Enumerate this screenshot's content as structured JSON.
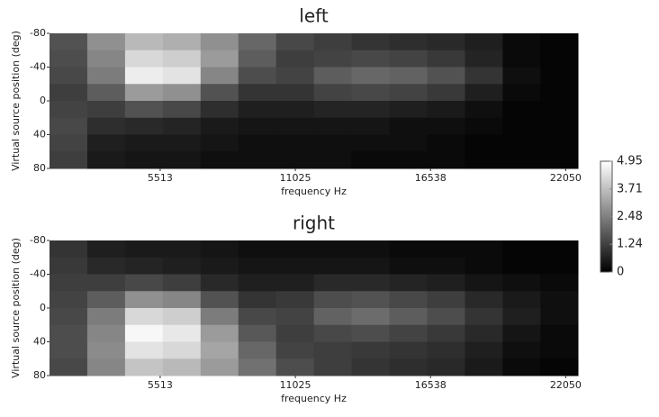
{
  "chart_data": [
    {
      "type": "heatmap",
      "title": "left",
      "x_label": "frequency Hz",
      "y_label": "Virtual source position (deg)",
      "x": [
        1770,
        3310,
        4850,
        6390,
        7930,
        9470,
        11010,
        12550,
        14090,
        15630,
        17170,
        18710,
        20250,
        21790
      ],
      "y": [
        -70,
        -50,
        -30,
        -10,
        10,
        30,
        50,
        70
      ],
      "z": [
        [
          1.6,
          2.8,
          3.6,
          3.4,
          2.8,
          2.0,
          1.4,
          1.2,
          1.0,
          0.9,
          0.8,
          0.6,
          0.2,
          0.1
        ],
        [
          1.5,
          2.6,
          4.2,
          4.0,
          3.0,
          1.8,
          1.2,
          1.3,
          1.4,
          1.3,
          1.1,
          0.7,
          0.2,
          0.1
        ],
        [
          1.4,
          2.4,
          4.6,
          4.4,
          2.6,
          1.5,
          1.3,
          1.8,
          2.0,
          1.9,
          1.6,
          1.0,
          0.3,
          0.1
        ],
        [
          1.2,
          1.8,
          3.0,
          2.8,
          1.6,
          1.0,
          1.0,
          1.3,
          1.4,
          1.3,
          1.1,
          0.6,
          0.2,
          0.1
        ],
        [
          1.3,
          1.2,
          1.6,
          1.4,
          0.9,
          0.6,
          0.6,
          0.7,
          0.7,
          0.6,
          0.5,
          0.3,
          0.1,
          0.1
        ],
        [
          1.4,
          0.9,
          0.8,
          0.7,
          0.5,
          0.4,
          0.4,
          0.4,
          0.4,
          0.3,
          0.3,
          0.2,
          0.1,
          0.1
        ],
        [
          1.3,
          0.6,
          0.5,
          0.5,
          0.4,
          0.3,
          0.3,
          0.3,
          0.3,
          0.3,
          0.2,
          0.1,
          0.1,
          0.1
        ],
        [
          1.2,
          0.5,
          0.4,
          0.4,
          0.3,
          0.3,
          0.3,
          0.3,
          0.2,
          0.2,
          0.2,
          0.1,
          0.1,
          0.1
        ]
      ],
      "xlim": [
        1000,
        22550
      ],
      "ylim": [
        -80,
        80
      ],
      "xticks": [
        5513,
        11025,
        16538,
        22050
      ],
      "yticks": [
        -80,
        -40,
        0,
        40,
        80
      ],
      "colorbar": {
        "lim": [
          0,
          4.95
        ],
        "ticks": [
          0,
          1.24,
          2.48,
          3.71,
          4.95
        ]
      }
    },
    {
      "type": "heatmap",
      "title": "right",
      "x_label": "frequency Hz",
      "y_label": "Virtual source position (deg)",
      "x": [
        1770,
        3310,
        4850,
        6390,
        7930,
        9470,
        11010,
        12550,
        14090,
        15630,
        17170,
        18710,
        20250,
        21790
      ],
      "y": [
        -70,
        -50,
        -30,
        -10,
        10,
        30,
        50,
        70
      ],
      "z": [
        [
          1.0,
          0.6,
          0.5,
          0.5,
          0.4,
          0.3,
          0.3,
          0.3,
          0.3,
          0.2,
          0.2,
          0.2,
          0.1,
          0.1
        ],
        [
          1.1,
          0.8,
          0.7,
          0.6,
          0.5,
          0.4,
          0.4,
          0.4,
          0.4,
          0.3,
          0.3,
          0.2,
          0.1,
          0.1
        ],
        [
          1.2,
          1.2,
          1.4,
          1.2,
          0.8,
          0.6,
          0.6,
          0.8,
          0.8,
          0.7,
          0.6,
          0.4,
          0.3,
          0.2
        ],
        [
          1.3,
          1.8,
          2.8,
          2.6,
          1.6,
          1.0,
          1.1,
          1.5,
          1.6,
          1.4,
          1.2,
          0.8,
          0.5,
          0.3
        ],
        [
          1.4,
          2.4,
          4.2,
          4.0,
          2.4,
          1.4,
          1.3,
          1.9,
          2.1,
          1.8,
          1.5,
          1.0,
          0.6,
          0.3
        ],
        [
          1.5,
          2.6,
          4.8,
          4.5,
          3.0,
          1.7,
          1.2,
          1.4,
          1.5,
          1.3,
          1.1,
          0.8,
          0.4,
          0.2
        ],
        [
          1.5,
          2.7,
          4.4,
          4.2,
          3.2,
          2.0,
          1.3,
          1.2,
          1.1,
          1.0,
          0.9,
          0.6,
          0.3,
          0.2
        ],
        [
          1.4,
          2.6,
          3.8,
          3.6,
          3.0,
          2.2,
          1.5,
          1.2,
          1.0,
          0.9,
          0.8,
          0.5,
          0.2,
          0.1
        ]
      ],
      "xlim": [
        1000,
        22550
      ],
      "ylim": [
        -80,
        80
      ],
      "xticks": [
        5513,
        11025,
        16538,
        22050
      ],
      "yticks": [
        -80,
        -40,
        0,
        40,
        80
      ]
    }
  ]
}
